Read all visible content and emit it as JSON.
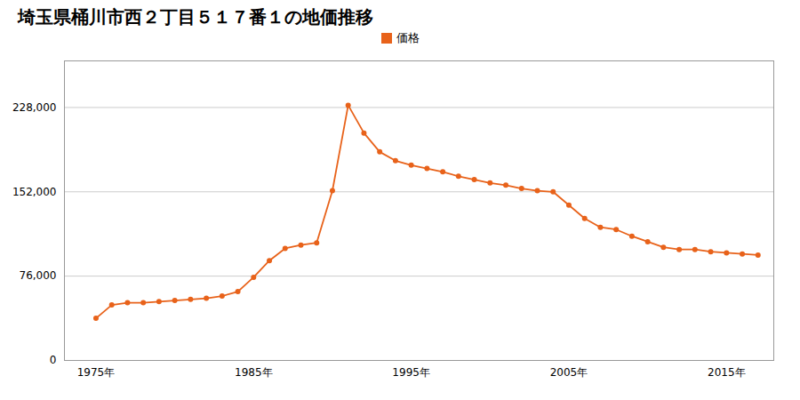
{
  "chart_data": {
    "type": "line",
    "title": "埼玉県桶川市西２丁目５１７番１の地価推移",
    "x": [
      1975,
      1976,
      1977,
      1978,
      1979,
      1980,
      1981,
      1982,
      1983,
      1984,
      1985,
      1986,
      1987,
      1988,
      1989,
      1990,
      1991,
      1992,
      1993,
      1994,
      1995,
      1996,
      1997,
      1998,
      1999,
      2000,
      2001,
      2002,
      2003,
      2004,
      2005,
      2006,
      2007,
      2008,
      2009,
      2010,
      2011,
      2012,
      2013,
      2014,
      2015,
      2016,
      2017
    ],
    "series": [
      {
        "name": "価格",
        "color": "#e8621a",
        "marker": "circle",
        "values": [
          38000,
          50000,
          52000,
          52000,
          53000,
          54000,
          55000,
          56000,
          58000,
          62000,
          75000,
          90000,
          101000,
          104000,
          106000,
          153000,
          230000,
          205000,
          188000,
          180000,
          176000,
          173000,
          170000,
          166000,
          163000,
          160000,
          158000,
          155000,
          153000,
          152000,
          140000,
          128000,
          120000,
          118000,
          112000,
          107000,
          102000,
          100000,
          100000,
          98000,
          97000,
          96000,
          95000
        ]
      }
    ],
    "xlim": [
      1973,
      2018
    ],
    "xticks": [
      {
        "value": 1975,
        "label": "1975年"
      },
      {
        "value": 1985,
        "label": "1985年"
      },
      {
        "value": 1995,
        "label": "1995年"
      },
      {
        "value": 2005,
        "label": "2005年"
      },
      {
        "value": 2015,
        "label": "2015年"
      }
    ],
    "ylim": [
      0,
      270000
    ],
    "yticks": [
      0,
      {
        "value": 76000,
        "label": "76,000"
      },
      {
        "value": 152000,
        "label": "152,000"
      },
      {
        "value": 228000,
        "label": "228,000"
      }
    ],
    "grid": "y",
    "legend": "top"
  }
}
